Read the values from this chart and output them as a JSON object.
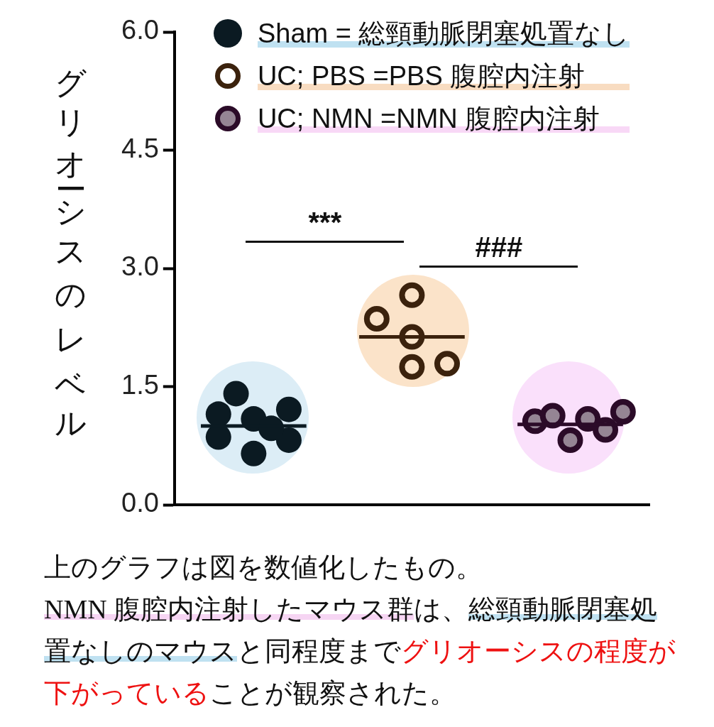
{
  "chart_data": {
    "type": "scatter",
    "ylabel": "グリオーシスのレベル",
    "annotations": [
      "***",
      "###",
      "上のグラフは図を数値化したもの。",
      "NMN 腹腔内注射したマウス群",
      "は、",
      "総頸動脈閉塞処",
      "置なしのマウス",
      "と同程度まで",
      "グリオーシスの程度が",
      "下がっている",
      "ことが観察された。"
    ],
    "categories": [
      null,
      null,
      null,
      null,
      null,
      null,
      null,
      null,
      null,
      null,
      null,
      null,
      null,
      null,
      null,
      null,
      null,
      null,
      null,
      null,
      null,
      null,
      null,
      null,
      null,
      null,
      null
    ],
    "ylim": [
      0,
      6
    ],
    "yticks": [
      {
        "value": 0,
        "label": "0.0"
      },
      1.5,
      {
        "value": 3,
        "label": "3.0"
      },
      4.5,
      {
        "value": 6,
        "label": "6.0"
      }
    ],
    "tick_labels": "y",
    "legend": "top",
    "marker": "circle",
    "series": [
      {
        "name": "Sham = 総頸動脈閉塞処置なし",
        "color": "#0b1a22",
        "values": [
          null,
          null,
          1.15,
          1.41,
          1.09,
          0.97,
          1.21,
          null,
          null,
          null,
          null,
          null,
          null,
          null,
          null,
          null,
          null,
          null,
          null,
          null,
          null,
          null,
          null,
          null,
          null,
          null,
          null
        ]
      },
      {
        "name": "UC; PBS =PBS 腹腔内注射",
        "color": "#3b220d",
        "values": [
          null,
          null,
          null,
          null,
          null,
          null,
          null,
          null,
          null,
          null,
          null,
          2.36,
          null,
          2.66,
          null,
          1.79,
          null,
          null,
          null,
          null,
          null,
          null,
          null,
          null,
          null,
          null,
          null
        ]
      },
      {
        "name": "UC; NMN =NMN 腹腔内注射",
        "color": "#2b0b28",
        "values": [
          null,
          null,
          null,
          null,
          null,
          null,
          null,
          null,
          null,
          null,
          null,
          null,
          null,
          null,
          null,
          null,
          null,
          null,
          null,
          null,
          1.06,
          1.13,
          0.82,
          1.09,
          0.95,
          1.18,
          null
        ]
      },
      {
        "color": "#0b1a22",
        "values": [
          null,
          null,
          0.86,
          null,
          0.65,
          null,
          0.82,
          null,
          null,
          null,
          null,
          null,
          null,
          null,
          null,
          null,
          null,
          null,
          null,
          null,
          null,
          null,
          null,
          null,
          null,
          null,
          null
        ]
      },
      {
        "color": "#3b220d",
        "values": [
          null,
          null,
          null,
          null,
          null,
          null,
          null,
          null,
          null,
          null,
          null,
          null,
          null,
          2.13,
          null,
          null,
          null,
          null,
          null,
          null,
          null,
          null,
          null,
          null,
          null,
          null,
          null
        ]
      },
      {
        "color": "#3b220d",
        "values": [
          null,
          null,
          null,
          null,
          null,
          null,
          null,
          null,
          null,
          null,
          null,
          null,
          null,
          1.75,
          null,
          null,
          null,
          null,
          null,
          null,
          null,
          null,
          null,
          null,
          null,
          null,
          null
        ]
      },
      {
        "type": "line",
        "marker": "none",
        "color": "#0b1a22",
        "values": [
          null,
          1.0,
          1.0,
          1.0,
          1.0,
          1.0,
          1.0,
          1.0,
          null,
          null,
          null,
          null,
          null,
          null,
          null,
          null,
          null,
          null,
          null,
          null,
          null,
          null,
          null,
          null,
          null,
          null,
          null
        ]
      },
      {
        "type": "line",
        "marker": "none",
        "color": "#3b220d",
        "values": [
          null,
          null,
          null,
          null,
          null,
          null,
          null,
          null,
          null,
          null,
          2.13,
          2.13,
          2.13,
          2.13,
          2.13,
          2.13,
          2.13,
          null,
          null,
          null,
          null,
          null,
          null,
          null,
          null,
          null,
          null
        ]
      },
      {
        "type": "line",
        "marker": "none",
        "color": "#2b0b28",
        "values": [
          null,
          null,
          null,
          null,
          null,
          null,
          null,
          null,
          null,
          null,
          null,
          null,
          null,
          null,
          null,
          null,
          null,
          null,
          null,
          1.02,
          1.02,
          1.02,
          1.02,
          1.02,
          1.02,
          1.02,
          null
        ]
      }
    ]
  }
}
